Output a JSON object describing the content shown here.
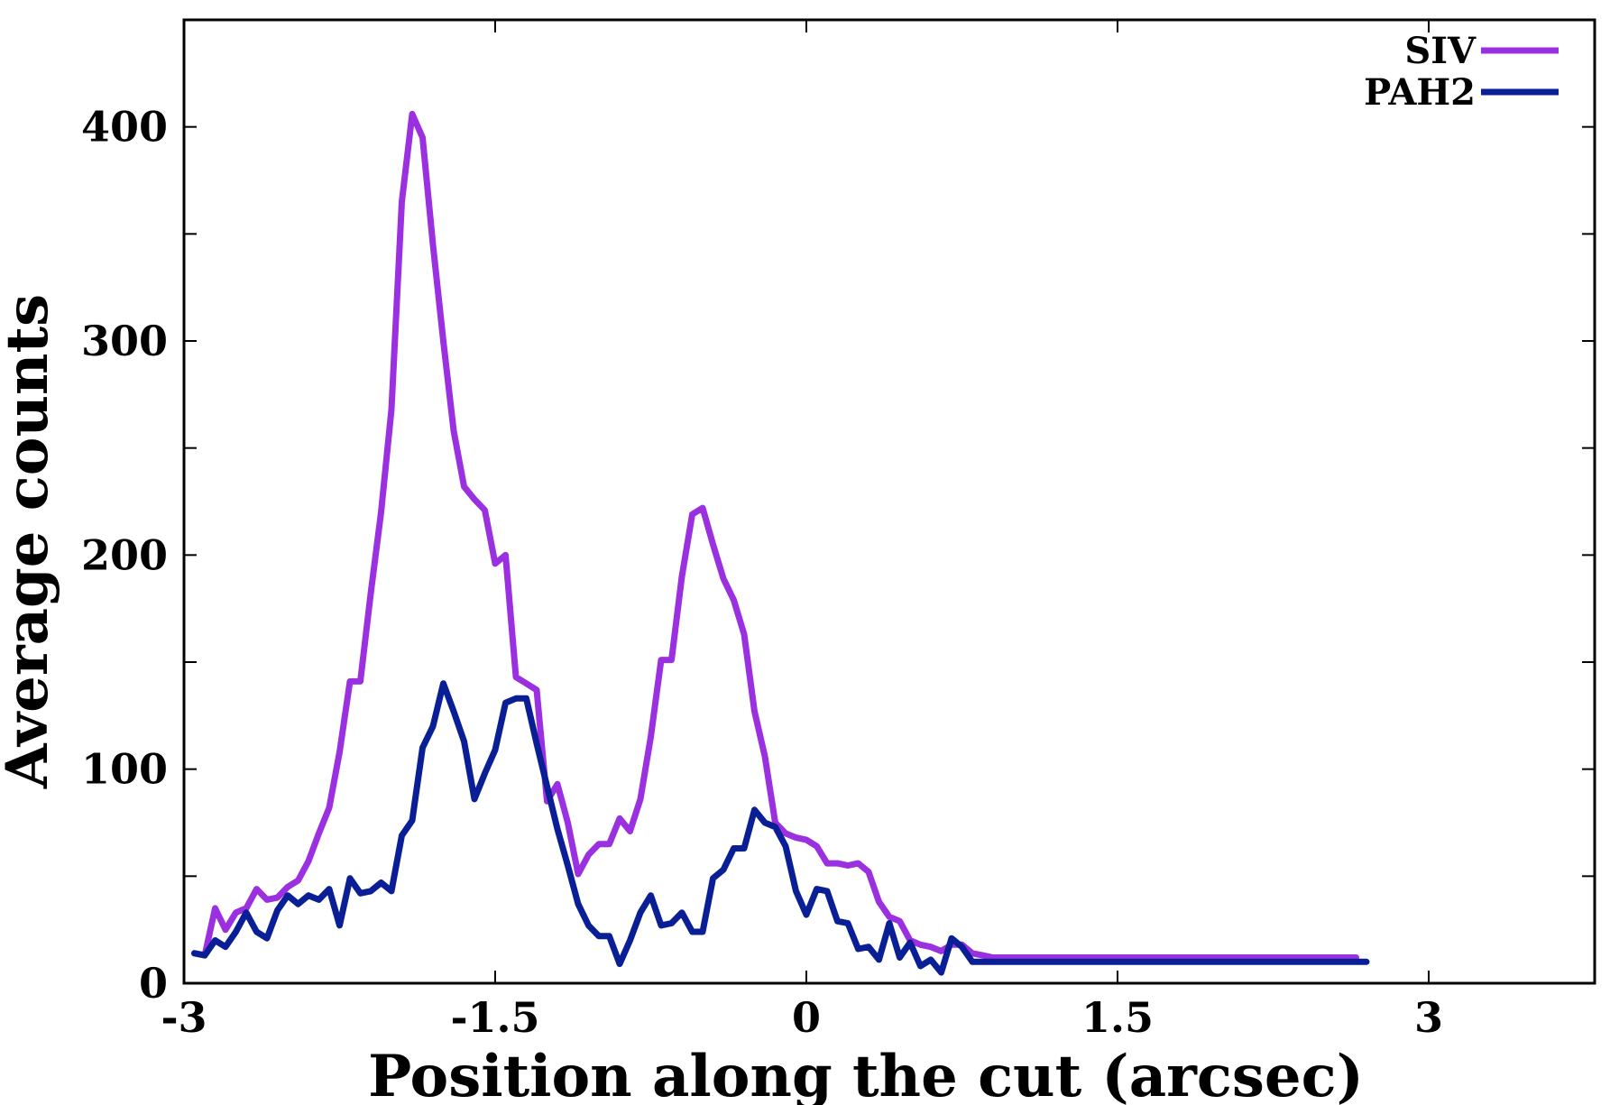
{
  "chart_data": {
    "type": "line",
    "title": "",
    "xlabel": "Position along the cut (arcsec)",
    "ylabel": "Average counts",
    "xlim": [
      -3,
      3.8
    ],
    "ylim": [
      0,
      450
    ],
    "xticks": [
      -3,
      -1.5,
      0,
      1.5,
      3
    ],
    "xtick_labels": [
      "-3",
      "-1.5",
      "0",
      "1.5",
      "3"
    ],
    "yticks": [
      0,
      100,
      200,
      300,
      400
    ],
    "ytick_labels": [
      "0",
      "100",
      "200",
      "300",
      "400"
    ],
    "minor_yticks": [
      50,
      150,
      250,
      350
    ],
    "legend_position": "top-right",
    "grid": false,
    "series": [
      {
        "name": "SIV",
        "color": "#9B30E0",
        "x": [
          -2.9,
          -2.85,
          -2.8,
          -2.75,
          -2.7,
          -2.65,
          -2.6,
          -2.55,
          -2.5,
          -2.45,
          -2.4,
          -2.35,
          -2.3,
          -2.25,
          -2.2,
          -2.15,
          -2.1,
          -2.05,
          -2.0,
          -1.95,
          -1.9,
          -1.85,
          -1.8,
          -1.75,
          -1.7,
          -1.65,
          -1.6,
          -1.55,
          -1.5,
          -1.45,
          -1.4,
          -1.35,
          -1.3,
          -1.25,
          -1.2,
          -1.15,
          -1.1,
          -1.05,
          -1.0,
          -0.95,
          -0.9,
          -0.85,
          -0.8,
          -0.75,
          -0.7,
          -0.65,
          -0.6,
          -0.55,
          -0.5,
          -0.45,
          -0.4,
          -0.35,
          -0.3,
          -0.25,
          -0.2,
          -0.15,
          -0.1,
          -0.05,
          0.0,
          0.05,
          0.1,
          0.15,
          0.2,
          0.25,
          0.3,
          0.35,
          0.4,
          0.45,
          0.5,
          0.55,
          0.6,
          0.65,
          0.7,
          0.75,
          0.8,
          0.85,
          0.9,
          0.95,
          1.0,
          1.05,
          1.1,
          1.15,
          1.2,
          1.25,
          1.3,
          1.35,
          1.4,
          1.45,
          1.5,
          1.55,
          1.6,
          1.65,
          1.7,
          1.75,
          1.8,
          1.85,
          1.9,
          1.95,
          2.0,
          2.05,
          2.1,
          2.15,
          2.2,
          2.25,
          2.3,
          2.35,
          2.4,
          2.45,
          2.5,
          2.55,
          2.6,
          2.65,
          2.7
        ],
        "values": [
          14,
          13,
          35,
          25,
          33,
          35,
          44,
          39,
          40,
          45,
          48,
          57,
          70,
          82,
          108,
          141,
          141,
          182,
          220,
          268,
          365,
          406,
          395,
          345,
          300,
          258,
          232,
          226,
          221,
          196,
          200,
          143,
          140,
          137,
          85,
          93,
          75,
          51,
          60,
          65,
          65,
          77,
          71,
          86,
          115,
          151,
          151,
          190,
          219,
          222,
          205,
          189,
          179,
          163,
          127,
          106,
          75,
          70,
          68,
          67,
          64,
          56,
          56,
          55,
          56,
          52,
          38,
          31,
          29,
          20,
          18,
          17,
          15,
          18,
          18,
          14,
          13,
          12,
          12,
          12,
          12,
          12,
          12,
          12,
          12,
          12,
          12,
          12,
          12,
          12,
          12,
          12,
          12,
          12,
          12,
          12,
          12,
          12,
          12,
          12,
          12,
          12,
          12,
          12,
          12,
          12,
          12,
          12,
          12,
          12,
          12,
          12,
          12
        ],
        "x_real": [
          -2.95,
          -2.9,
          -2.85,
          -2.8,
          -2.75,
          -2.7,
          -2.65,
          -2.6,
          -2.55,
          -2.5,
          -2.45,
          -2.4,
          -2.35,
          -2.3,
          -2.25,
          -2.2,
          -2.15,
          -2.1,
          -2.05,
          -2.0,
          -1.95,
          -1.9,
          -1.85,
          -1.8,
          -1.75,
          -1.7,
          -1.65,
          -1.6,
          -1.55,
          -1.5,
          -1.45,
          -1.4,
          -1.35,
          -1.3,
          -1.25,
          -1.2,
          -1.15,
          -1.1,
          -1.05,
          -1.0,
          -0.95,
          -0.9,
          -0.85,
          -0.8,
          -0.75,
          -0.7,
          -0.65,
          -0.6,
          -0.55,
          -0.5,
          -0.45,
          -0.4,
          -0.35,
          -0.3,
          -0.25,
          -0.2,
          -0.15,
          -0.1,
          -0.05,
          0.0,
          0.05,
          0.1,
          0.15,
          0.2,
          0.25,
          0.3,
          0.35,
          0.4,
          0.45,
          0.5,
          0.55,
          0.6,
          0.65,
          0.7,
          0.75,
          0.8,
          0.85,
          0.9,
          0.95,
          1.0,
          1.05,
          1.1,
          1.15,
          1.2,
          1.25,
          1.3,
          1.35,
          1.4,
          1.45,
          1.5,
          1.55,
          1.6,
          1.65,
          1.7,
          1.75,
          1.8,
          1.85,
          1.9,
          1.95,
          2.0,
          2.05,
          2.1,
          2.15,
          2.2,
          2.25,
          2.3,
          2.35,
          2.4,
          2.45,
          2.5,
          2.55,
          2.6,
          2.65,
          2.7
        ]
      },
      {
        "name": "PAH2",
        "color": "#0A1E96",
        "x": [
          -2.95,
          -2.9,
          -2.85,
          -2.8,
          -2.75,
          -2.7,
          -2.65,
          -2.6,
          -2.55,
          -2.5,
          -2.45,
          -2.4,
          -2.35,
          -2.3,
          -2.25,
          -2.2,
          -2.15,
          -2.1,
          -2.05,
          -2.0,
          -1.95,
          -1.9,
          -1.85,
          -1.8,
          -1.75,
          -1.7,
          -1.65,
          -1.6,
          -1.55,
          -1.5,
          -1.45,
          -1.4,
          -1.35,
          -1.3,
          -1.25,
          -1.2,
          -1.15,
          -1.1,
          -1.05,
          -1.0,
          -0.95,
          -0.9,
          -0.85,
          -0.8,
          -0.75,
          -0.7,
          -0.65,
          -0.6,
          -0.55,
          -0.5,
          -0.45,
          -0.4,
          -0.35,
          -0.3,
          -0.25,
          -0.2,
          -0.15,
          -0.1,
          -0.05,
          0.0,
          0.05,
          0.1,
          0.15,
          0.2,
          0.25,
          0.3,
          0.35,
          0.4,
          0.45,
          0.5,
          0.55,
          0.6,
          0.65,
          0.7,
          0.75,
          0.8,
          0.85,
          0.9,
          0.95,
          1.0,
          1.05,
          1.1,
          1.15,
          1.2,
          1.25,
          1.3,
          1.35,
          1.4,
          1.45,
          1.5,
          1.55,
          1.6,
          1.65,
          1.7,
          1.75,
          1.8,
          1.85,
          1.9,
          1.95,
          2.0,
          2.05,
          2.1,
          2.15,
          2.2,
          2.25,
          2.3,
          2.35,
          2.4,
          2.45,
          2.5,
          2.55,
          2.6,
          2.65,
          2.7
        ],
        "values": [
          14,
          13,
          20,
          17,
          24,
          33,
          24,
          21,
          34,
          41,
          37,
          41,
          39,
          44,
          27,
          49,
          42,
          43,
          47,
          43,
          69,
          76,
          110,
          120,
          140,
          127,
          113,
          86,
          98,
          109,
          131,
          133,
          133,
          112,
          92,
          72,
          55,
          37,
          27,
          22,
          22,
          9,
          20,
          33,
          41,
          27,
          28,
          33,
          24,
          24,
          49,
          53,
          63,
          63,
          81,
          75,
          73,
          64,
          43,
          32,
          44,
          43,
          29,
          28,
          16,
          17,
          11,
          28,
          12,
          19,
          8,
          11,
          5,
          21,
          17,
          10,
          10,
          10,
          10,
          10,
          10,
          10,
          10,
          10,
          10,
          10,
          10,
          10,
          10,
          10,
          10,
          10,
          10,
          10,
          10,
          10,
          10,
          10,
          10,
          10,
          10,
          10,
          10,
          10,
          10,
          10,
          10,
          10,
          10,
          10,
          10,
          10,
          10,
          10
        ]
      }
    ]
  }
}
